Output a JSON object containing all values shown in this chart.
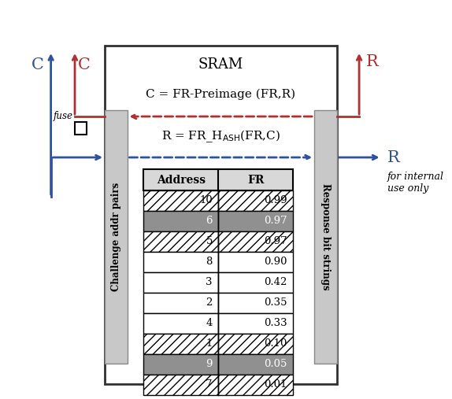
{
  "title": "SRAM",
  "eq1": "C = FR-Preimage (FR,R)",
  "table_headers": [
    "Address",
    "FR"
  ],
  "table_data": [
    [
      "10",
      "0.99"
    ],
    [
      "6",
      "0.97"
    ],
    [
      "5",
      "0.97"
    ],
    [
      "8",
      "0.90"
    ],
    [
      "3",
      "0.42"
    ],
    [
      "2",
      "0.35"
    ],
    [
      "4",
      "0.33"
    ],
    [
      "1",
      "0.10"
    ],
    [
      "9",
      "0.05"
    ],
    [
      "7",
      "0.01"
    ]
  ],
  "row_styles": [
    "hatch",
    "gray",
    "hatch",
    "white",
    "white",
    "white",
    "white",
    "hatch",
    "gray",
    "hatch"
  ],
  "label_challenge": "Challenge addr pairs",
  "label_response": "Response bit strings",
  "label_fuse": "fuse",
  "color_red": "#B03030",
  "color_blue": "#3050A0",
  "color_light_gray": "#C8C8C8",
  "color_dark_gray": "#909090",
  "color_header_gray": "#D8D8D8",
  "box_color": "#303030",
  "background": "#FFFFFF"
}
